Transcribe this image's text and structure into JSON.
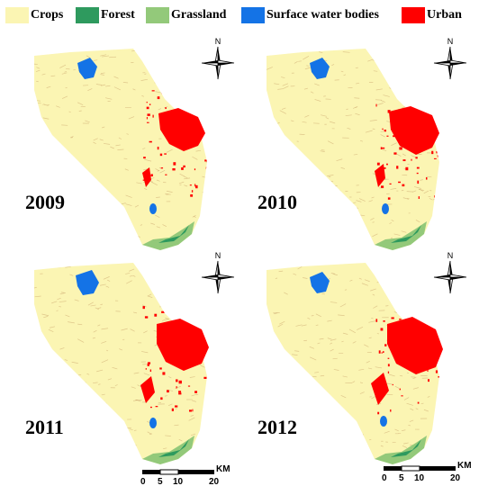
{
  "legend": {
    "items": [
      {
        "label": "Crops",
        "color": "#fbf5b3"
      },
      {
        "label": "Forest",
        "color": "#2e9a5e"
      },
      {
        "label": "Grassland",
        "color": "#93c97a"
      },
      {
        "label": "Surface water bodies",
        "color": "#1473e6"
      },
      {
        "label": "Urban",
        "color": "#ff0000"
      }
    ]
  },
  "panels": [
    {
      "year": "2009",
      "north": "N"
    },
    {
      "year": "2010",
      "north": "N"
    },
    {
      "year": "2011",
      "north": "N"
    },
    {
      "year": "2012",
      "north": "N"
    }
  ],
  "scale": {
    "unit": "KM",
    "ticks": [
      "0",
      "5",
      "10",
      "20"
    ]
  },
  "colors": {
    "crops": "#fbf5b3",
    "forest": "#2e9a5e",
    "grassland": "#93c97a",
    "water": "#1473e6",
    "urban": "#ff0000",
    "crop_texture": "#c8a06a"
  }
}
